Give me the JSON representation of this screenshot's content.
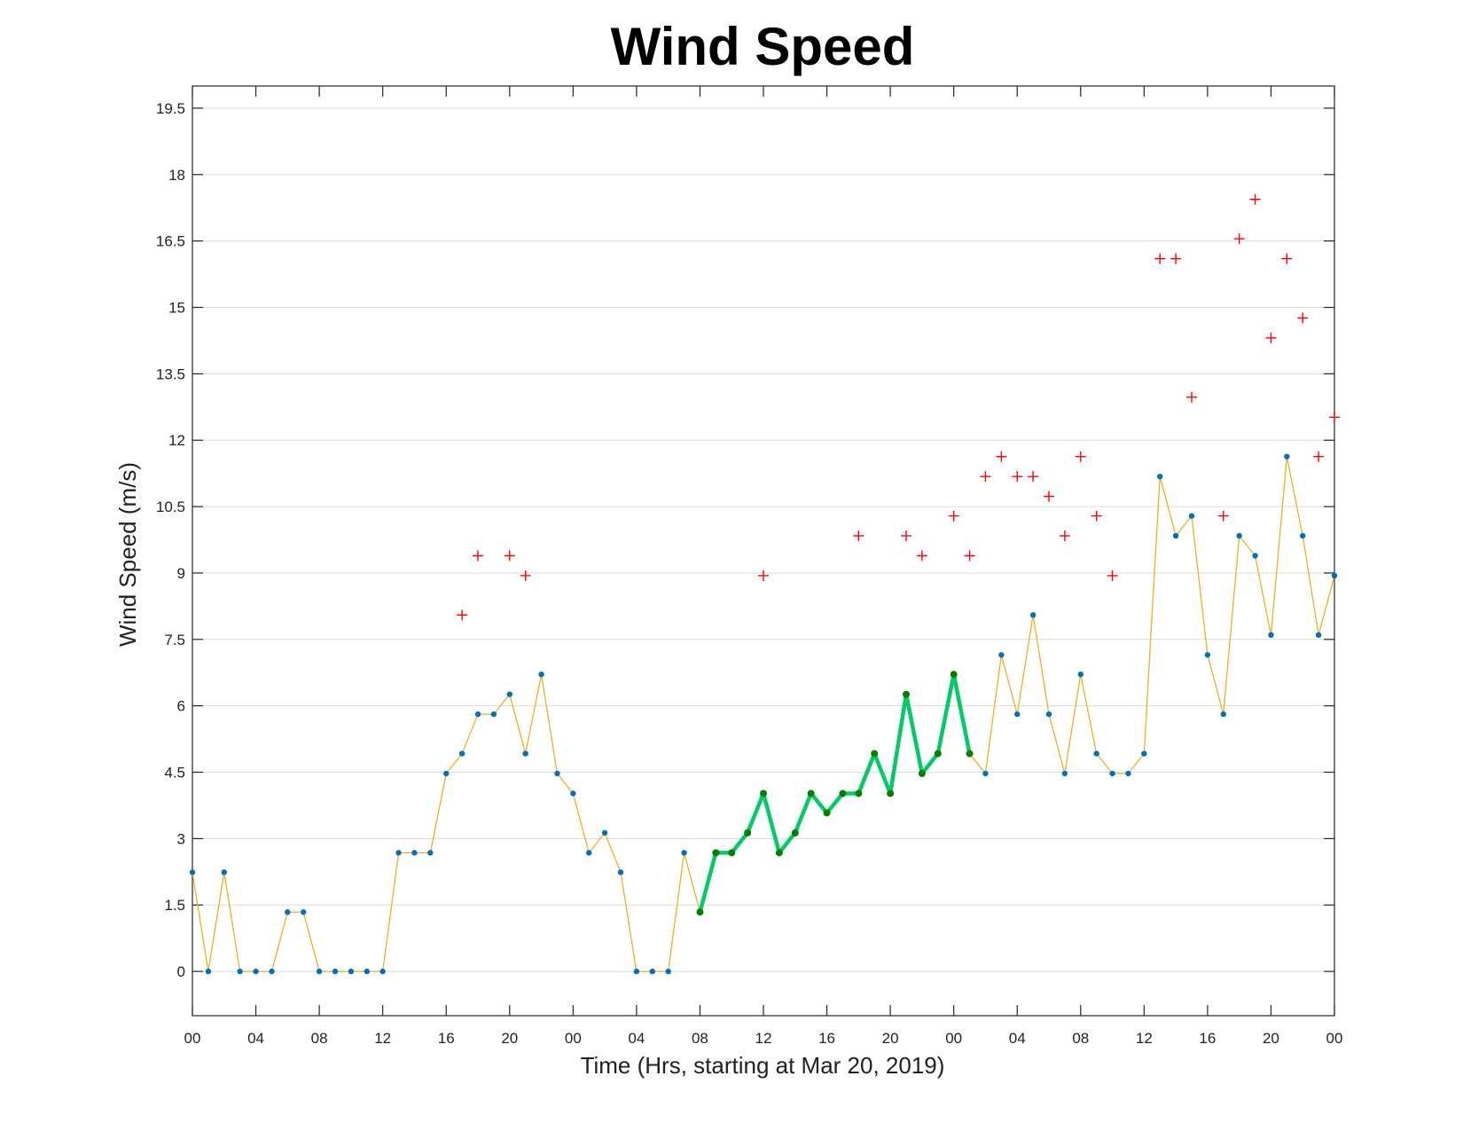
{
  "chart_data": {
    "type": "line",
    "title": "Wind Speed",
    "xlabel": "Time (Hrs, starting at Mar 20, 2019)",
    "ylabel": "Wind Speed (m/s)",
    "xlim": [
      0,
      72
    ],
    "ylim": [
      -1,
      20
    ],
    "grid": "horizontal",
    "x_tick_hours": [
      0,
      4,
      8,
      12,
      16,
      20,
      24,
      28,
      32,
      36,
      40,
      44,
      48,
      52,
      56,
      60,
      64,
      68,
      72
    ],
    "x_tick_labels": [
      "00",
      "04",
      "08",
      "12",
      "16",
      "20",
      "00",
      "04",
      "08",
      "12",
      "16",
      "20",
      "00",
      "04",
      "08",
      "12",
      "16",
      "20",
      "00"
    ],
    "y_ticks": [
      0,
      1.5,
      3,
      4.5,
      6,
      7.5,
      9,
      10.5,
      12,
      13.5,
      15,
      16.5,
      18,
      19.5
    ],
    "y_tick_labels": [
      "0",
      "1.5",
      "3",
      "4.5",
      "6",
      "7.5",
      "9",
      "10.5",
      "12",
      "13.5",
      "15",
      "16.5",
      "18",
      "19.5"
    ],
    "colors": {
      "wind_line": "#EDB120",
      "wind_marker": "#0072BD",
      "highlight_line": "#00CC66",
      "highlight_marker": "#007F00",
      "gust_marker": "#FF0000",
      "grid": "#DCDCDC",
      "axis": "#262626"
    },
    "series": [
      {
        "role": "wind_speed",
        "x": [
          0,
          1,
          2,
          3,
          4,
          5,
          6,
          7,
          8,
          9,
          10,
          11,
          12,
          13,
          14,
          15,
          16,
          17,
          18,
          19,
          20,
          21,
          22,
          23,
          24,
          25,
          26,
          27,
          28,
          29,
          30,
          31,
          32,
          33,
          34,
          35,
          36,
          37,
          38,
          39,
          40,
          41,
          42,
          43,
          44,
          45,
          46,
          47,
          48,
          49,
          50,
          51,
          52,
          53,
          54,
          55,
          56,
          57,
          58,
          59,
          60,
          61,
          62,
          63,
          64,
          65,
          66,
          67,
          68,
          69,
          70,
          71,
          72
        ],
        "y": [
          2.24,
          0,
          2.24,
          0,
          0,
          0,
          1.34,
          1.34,
          0,
          0,
          0,
          0,
          0,
          2.68,
          2.68,
          2.68,
          4.47,
          4.92,
          5.81,
          5.81,
          6.26,
          4.92,
          6.71,
          4.47,
          4.02,
          2.68,
          3.13,
          2.24,
          0,
          0,
          0,
          2.68,
          1.34,
          2.68,
          2.68,
          3.13,
          4.02,
          2.68,
          3.13,
          4.02,
          3.58,
          4.02,
          4.02,
          4.92,
          4.02,
          6.26,
          4.47,
          4.92,
          6.71,
          4.92,
          4.47,
          7.15,
          5.81,
          8.05,
          5.81,
          4.47,
          6.71,
          4.92,
          4.47,
          4.47,
          4.92,
          11.18,
          9.84,
          10.29,
          7.15,
          5.81,
          9.84,
          9.39,
          7.6,
          11.63,
          9.84,
          7.6,
          8.94
        ]
      },
      {
        "role": "highlighted_wind_speed",
        "x": [
          32,
          33,
          34,
          35,
          36,
          37,
          38,
          39,
          40,
          41,
          42,
          43,
          44,
          45,
          46,
          47,
          48,
          49
        ],
        "y": [
          1.34,
          2.68,
          2.68,
          3.13,
          4.02,
          2.68,
          3.13,
          4.02,
          3.58,
          4.02,
          4.02,
          4.92,
          4.02,
          6.26,
          4.47,
          4.92,
          6.71,
          4.92
        ]
      },
      {
        "role": "wind_gust",
        "x": [
          17,
          18,
          20,
          21,
          36,
          42,
          45,
          46,
          48,
          49,
          50,
          51,
          52,
          53,
          54,
          55,
          56,
          57,
          58,
          61,
          62,
          63,
          65,
          66,
          67,
          68,
          69,
          70,
          71,
          72
        ],
        "y": [
          8.05,
          9.39,
          9.39,
          8.94,
          8.94,
          9.84,
          9.84,
          9.39,
          10.29,
          9.39,
          11.18,
          11.63,
          11.18,
          11.18,
          10.73,
          9.84,
          11.63,
          10.29,
          8.94,
          16.1,
          16.1,
          12.97,
          10.29,
          16.55,
          17.44,
          14.31,
          16.1,
          14.76,
          11.63,
          12.52
        ]
      }
    ]
  }
}
